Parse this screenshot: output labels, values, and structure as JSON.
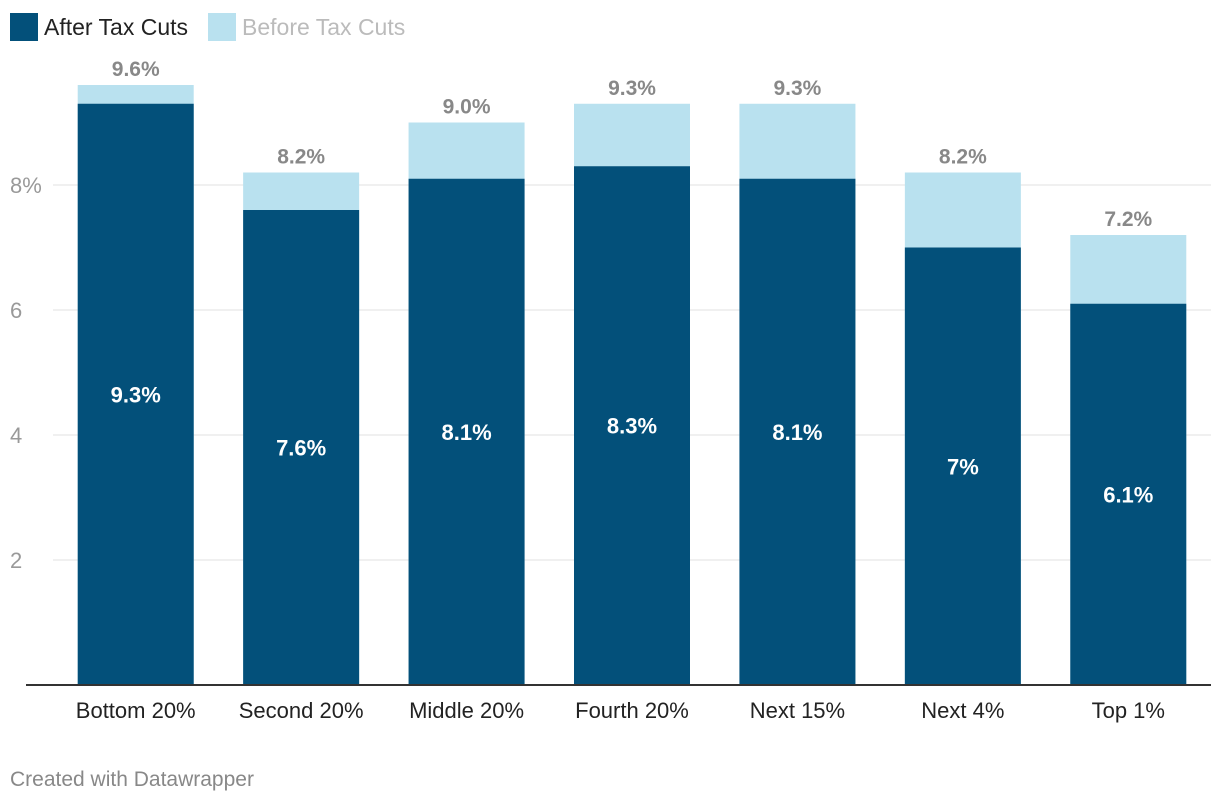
{
  "legend": {
    "after_label": "After Tax Cuts",
    "before_label": "Before Tax Cuts"
  },
  "colors": {
    "after": "#03507A",
    "before": "#B9E1EF",
    "legend_after_text": "#222222",
    "legend_before_text": "#BBBBBB",
    "axis_text": "#999999",
    "gridline": "#E2E2E2",
    "baseline": "#333333",
    "total_label": "#888888",
    "inner_label": "#FFFFFF"
  },
  "chart_data": {
    "type": "bar",
    "title": "",
    "xlabel": "",
    "ylabel": "",
    "categories": [
      "Bottom 20%",
      "Second 20%",
      "Middle 20%",
      "Fourth 20%",
      "Next 15%",
      "Next 4%",
      "Top 1%"
    ],
    "series": [
      {
        "name": "After Tax Cuts",
        "values": [
          9.3,
          7.6,
          8.1,
          8.3,
          8.1,
          7.0,
          6.1
        ],
        "labels": [
          "9.3%",
          "7.6%",
          "8.1%",
          "8.3%",
          "8.1%",
          "7%",
          "6.1%"
        ]
      },
      {
        "name": "Before Tax Cuts",
        "values": [
          9.6,
          8.2,
          9.0,
          9.3,
          9.3,
          8.2,
          7.2
        ],
        "labels": [
          "9.6%",
          "8.2%",
          "9.0%",
          "9.3%",
          "9.3%",
          "8.2%",
          "7.2%"
        ]
      }
    ],
    "ylim": [
      0,
      10
    ],
    "yticks": [
      2,
      4,
      6,
      8
    ],
    "ytick_labels": [
      "2",
      "4",
      "6",
      "8%"
    ],
    "legend_position": "top-left",
    "grid": true
  },
  "footer": {
    "credit": "Created with Datawrapper"
  }
}
